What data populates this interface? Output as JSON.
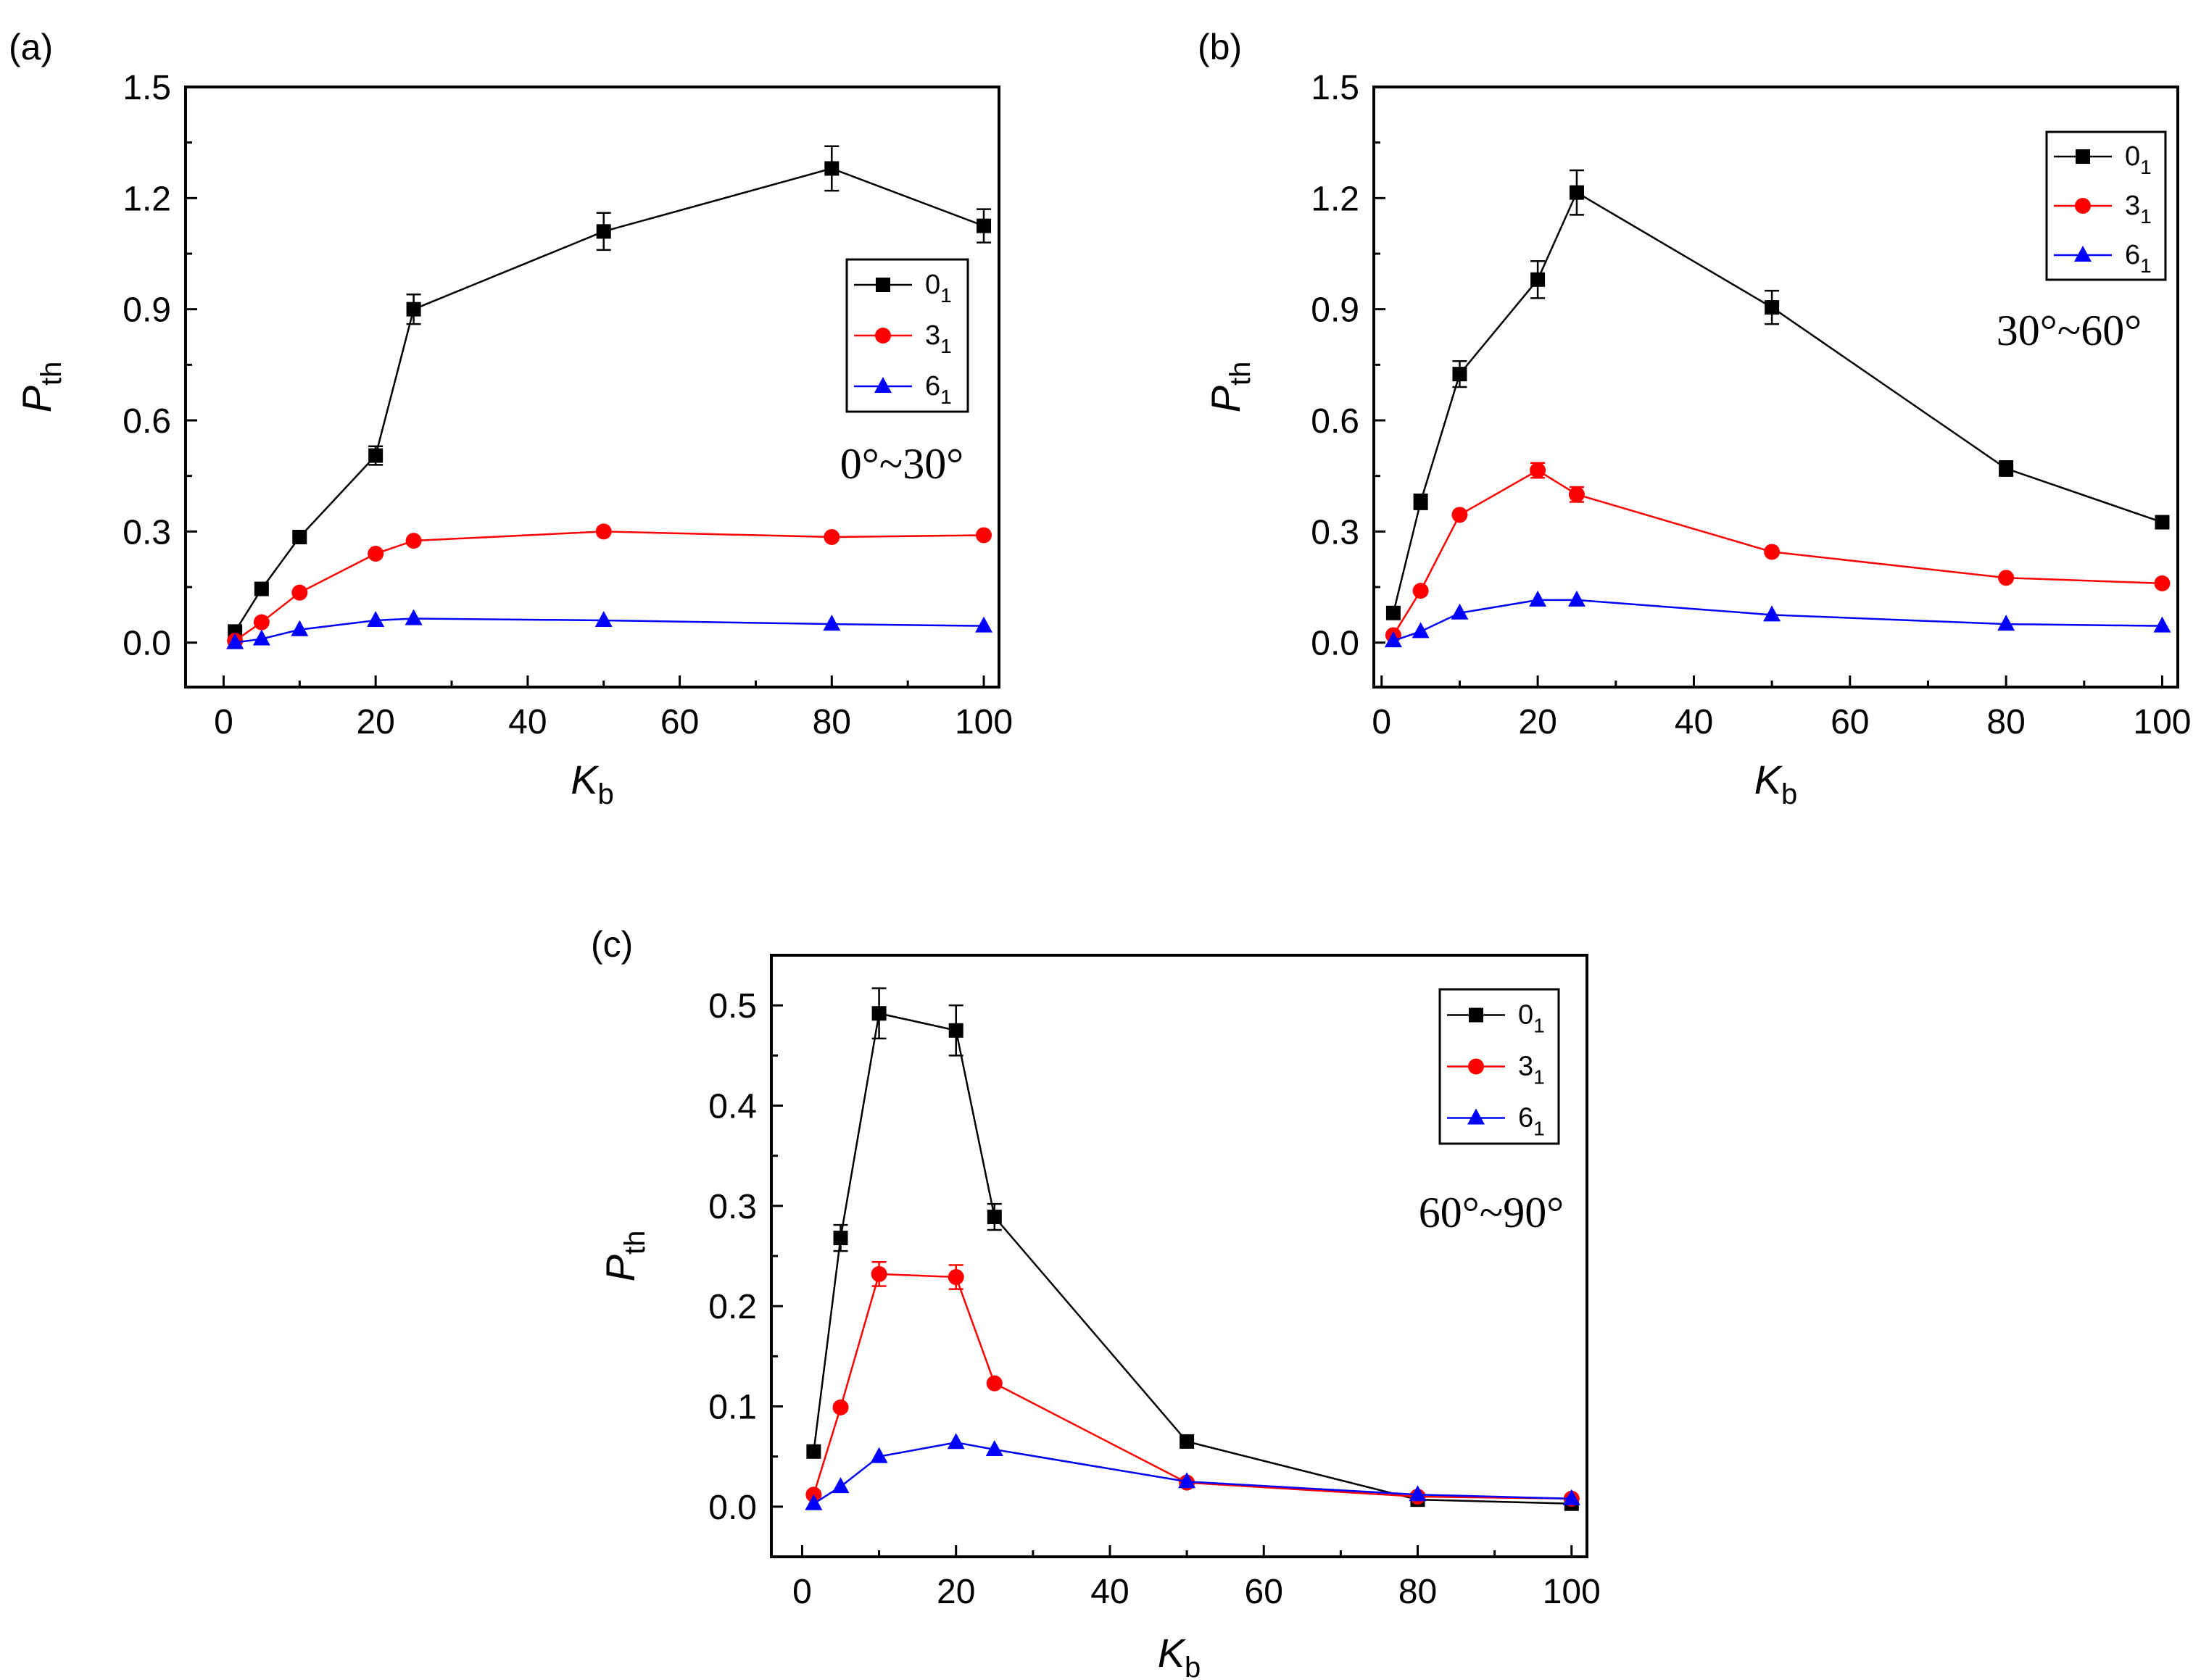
{
  "chart_data": [
    {
      "type": "line",
      "panel_label": "(a)",
      "angle_range": "0°~30°",
      "xlabel_main": "K",
      "xlabel_sub": "b",
      "ylabel_main": "P",
      "ylabel_sub": "th",
      "xlim": [
        -5,
        102
      ],
      "ylim": [
        -0.12,
        1.5
      ],
      "xticks": [
        0,
        20,
        40,
        60,
        80,
        100
      ],
      "yticks": [
        0.0,
        0.3,
        0.6,
        0.9,
        1.2,
        1.5
      ],
      "ytick_labels": [
        "0.0",
        "0.3",
        "0.6",
        "0.9",
        "1.2",
        "1.5"
      ],
      "x": [
        1.5,
        5,
        10,
        20,
        25,
        50,
        80,
        100
      ],
      "series": [
        {
          "name": "0",
          "name_sub": "1",
          "color": "#000000",
          "marker": "square",
          "values": [
            0.03,
            0.145,
            0.285,
            0.505,
            0.9,
            1.11,
            1.28,
            1.125
          ],
          "errors": [
            0,
            0,
            0,
            0.025,
            0.04,
            0.05,
            0.06,
            0.045
          ]
        },
        {
          "name": "3",
          "name_sub": "1",
          "color": "#ff0000",
          "marker": "circle",
          "values": [
            0.005,
            0.055,
            0.135,
            0.24,
            0.275,
            0.3,
            0.285,
            0.29
          ],
          "errors": [
            0,
            0,
            0,
            0,
            0,
            0,
            0,
            0
          ]
        },
        {
          "name": "6",
          "name_sub": "1",
          "color": "#0000ff",
          "marker": "triangle",
          "values": [
            0.0,
            0.01,
            0.035,
            0.06,
            0.065,
            0.06,
            0.05,
            0.045
          ],
          "errors": [
            0,
            0,
            0,
            0,
            0,
            0,
            0,
            0
          ]
        }
      ]
    },
    {
      "type": "line",
      "panel_label": "(b)",
      "angle_range": "30°~60°",
      "xlabel_main": "K",
      "xlabel_sub": "b",
      "ylabel_main": "P",
      "ylabel_sub": "th",
      "xlim": [
        -1,
        102
      ],
      "ylim": [
        -0.12,
        1.5
      ],
      "xticks": [
        0,
        20,
        40,
        60,
        80,
        100
      ],
      "yticks": [
        0.0,
        0.3,
        0.6,
        0.9,
        1.2,
        1.5
      ],
      "ytick_labels": [
        "0.0",
        "0.3",
        "0.6",
        "0.9",
        "1.2",
        "1.5"
      ],
      "x": [
        1.5,
        5,
        10,
        20,
        25,
        50,
        80,
        100
      ],
      "series": [
        {
          "name": "0",
          "name_sub": "1",
          "color": "#000000",
          "marker": "square",
          "values": [
            0.08,
            0.38,
            0.725,
            0.98,
            1.215,
            0.905,
            0.47,
            0.325
          ],
          "errors": [
            0,
            0.02,
            0.035,
            0.05,
            0.06,
            0.045,
            0.02,
            0
          ]
        },
        {
          "name": "3",
          "name_sub": "1",
          "color": "#ff0000",
          "marker": "circle",
          "values": [
            0.02,
            0.14,
            0.345,
            0.465,
            0.4,
            0.245,
            0.175,
            0.16
          ],
          "errors": [
            0,
            0,
            0,
            0.02,
            0.02,
            0,
            0,
            0
          ]
        },
        {
          "name": "6",
          "name_sub": "1",
          "color": "#0000ff",
          "marker": "triangle",
          "values": [
            0.005,
            0.03,
            0.08,
            0.115,
            0.115,
            0.075,
            0.05,
            0.045
          ],
          "errors": [
            0,
            0,
            0,
            0,
            0,
            0,
            0,
            0
          ]
        }
      ]
    },
    {
      "type": "line",
      "panel_label": "(c)",
      "angle_range": "60°~90°",
      "xlabel_main": "K",
      "xlabel_sub": "b",
      "ylabel_main": "P",
      "ylabel_sub": "th",
      "xlim": [
        -4,
        102
      ],
      "ylim": [
        -0.05,
        0.55
      ],
      "xticks": [
        0,
        20,
        40,
        60,
        80,
        100
      ],
      "yticks": [
        0.0,
        0.1,
        0.2,
        0.3,
        0.4,
        0.5
      ],
      "ytick_labels": [
        "0.0",
        "0.1",
        "0.2",
        "0.3",
        "0.4",
        "0.5"
      ],
      "x": [
        1.5,
        5,
        10,
        20,
        25,
        50,
        80,
        100
      ],
      "series": [
        {
          "name": "0",
          "name_sub": "1",
          "color": "#000000",
          "marker": "square",
          "values": [
            0.055,
            0.268,
            0.492,
            0.475,
            0.289,
            0.065,
            0.007,
            0.003
          ],
          "errors": [
            0,
            0.013,
            0.025,
            0.025,
            0.013,
            0,
            0,
            0
          ]
        },
        {
          "name": "3",
          "name_sub": "1",
          "color": "#ff0000",
          "marker": "circle",
          "values": [
            0.012,
            0.099,
            0.232,
            0.229,
            0.123,
            0.024,
            0.01,
            0.008
          ],
          "errors": [
            0,
            0,
            0.012,
            0.012,
            0,
            0,
            0,
            0
          ]
        },
        {
          "name": "6",
          "name_sub": "1",
          "color": "#0000ff",
          "marker": "triangle",
          "values": [
            0.003,
            0.02,
            0.05,
            0.064,
            0.057,
            0.025,
            0.012,
            0.008
          ],
          "errors": [
            0,
            0,
            0,
            0,
            0,
            0,
            0,
            0
          ]
        }
      ]
    }
  ]
}
